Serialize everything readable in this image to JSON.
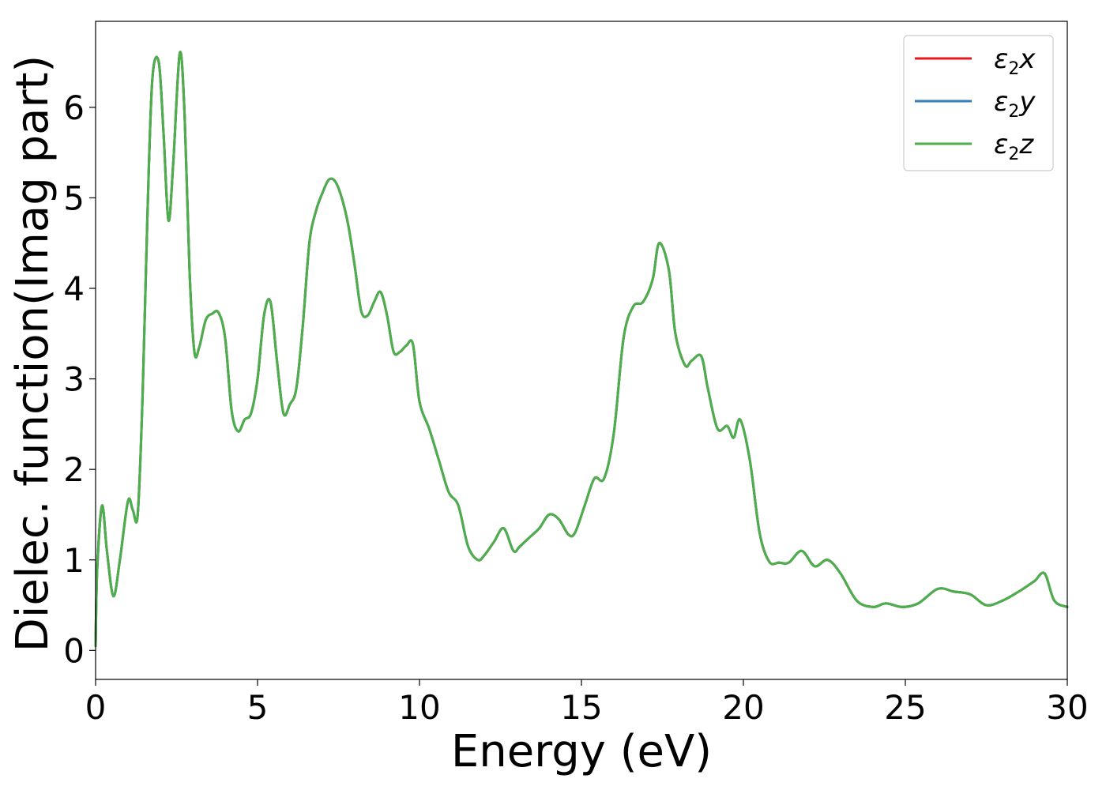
{
  "chart_data": {
    "type": "line",
    "xlabel": "Energy (eV)",
    "ylabel": "Dielec. function(Imag part)",
    "xlim": [
      0,
      30
    ],
    "ylim": [
      -0.32,
      6.95
    ],
    "xticks": [
      0,
      5,
      10,
      15,
      20,
      25,
      30
    ],
    "yticks": [
      0,
      1,
      2,
      3,
      4,
      5,
      6
    ],
    "grid": false,
    "legend_position": "top-right",
    "x": [
      0.0,
      0.05,
      0.2,
      0.35,
      0.55,
      0.75,
      1.0,
      1.15,
      1.3,
      1.45,
      1.6,
      1.75,
      1.95,
      2.1,
      2.25,
      2.4,
      2.6,
      2.75,
      2.9,
      3.05,
      3.2,
      3.4,
      3.6,
      3.8,
      4.0,
      4.2,
      4.4,
      4.6,
      4.8,
      5.0,
      5.2,
      5.4,
      5.6,
      5.8,
      6.0,
      6.2,
      6.4,
      6.6,
      6.8,
      7.0,
      7.2,
      7.4,
      7.6,
      7.8,
      8.0,
      8.2,
      8.4,
      8.6,
      8.8,
      9.0,
      9.2,
      9.4,
      9.6,
      9.8,
      10.0,
      10.3,
      10.6,
      10.9,
      11.2,
      11.5,
      11.8,
      12.0,
      12.3,
      12.6,
      12.9,
      13.1,
      13.4,
      13.7,
      14.0,
      14.3,
      14.6,
      14.8,
      15.1,
      15.4,
      15.7,
      16.0,
      16.3,
      16.6,
      16.9,
      17.2,
      17.4,
      17.7,
      17.9,
      18.2,
      18.4,
      18.7,
      18.9,
      19.2,
      19.5,
      19.7,
      19.9,
      20.2,
      20.5,
      20.8,
      21.1,
      21.4,
      21.8,
      22.2,
      22.6,
      23.0,
      23.5,
      24.0,
      24.4,
      24.9,
      25.4,
      26.0,
      26.5,
      27.0,
      27.5,
      28.0,
      28.5,
      28.8,
      29.0,
      29.3,
      29.6,
      30.0
    ],
    "series": [
      {
        "name": "ε₂x",
        "color": "#e41a1c",
        "y": [
          0.05,
          0.9,
          1.6,
          1.1,
          0.6,
          1.0,
          1.65,
          1.55,
          1.5,
          2.8,
          4.8,
          6.3,
          6.5,
          5.7,
          4.75,
          5.4,
          6.6,
          5.9,
          4.2,
          3.3,
          3.35,
          3.65,
          3.72,
          3.73,
          3.45,
          2.65,
          2.42,
          2.55,
          2.62,
          3.0,
          3.7,
          3.85,
          3.2,
          2.62,
          2.72,
          2.9,
          3.6,
          4.5,
          4.85,
          5.05,
          5.2,
          5.18,
          5.0,
          4.7,
          4.25,
          3.75,
          3.7,
          3.85,
          3.96,
          3.7,
          3.3,
          3.3,
          3.37,
          3.38,
          2.75,
          2.45,
          2.1,
          1.75,
          1.6,
          1.15,
          1.0,
          1.05,
          1.2,
          1.35,
          1.1,
          1.15,
          1.25,
          1.35,
          1.5,
          1.45,
          1.28,
          1.3,
          1.6,
          1.9,
          1.9,
          2.4,
          3.45,
          3.8,
          3.85,
          4.1,
          4.5,
          4.2,
          3.5,
          3.15,
          3.2,
          3.25,
          2.9,
          2.45,
          2.48,
          2.35,
          2.55,
          2.1,
          1.3,
          0.98,
          0.97,
          0.97,
          1.1,
          0.93,
          1.0,
          0.85,
          0.55,
          0.48,
          0.52,
          0.48,
          0.52,
          0.68,
          0.65,
          0.62,
          0.5,
          0.55,
          0.65,
          0.72,
          0.77,
          0.85,
          0.55,
          0.48
        ]
      },
      {
        "name": "ε₂y",
        "color": "#377eb8",
        "y": [
          0.05,
          0.9,
          1.6,
          1.1,
          0.6,
          1.0,
          1.65,
          1.55,
          1.5,
          2.8,
          4.8,
          6.3,
          6.5,
          5.7,
          4.75,
          5.4,
          6.6,
          5.9,
          4.2,
          3.3,
          3.35,
          3.65,
          3.72,
          3.73,
          3.45,
          2.65,
          2.42,
          2.55,
          2.62,
          3.0,
          3.7,
          3.85,
          3.2,
          2.62,
          2.72,
          2.9,
          3.6,
          4.5,
          4.85,
          5.05,
          5.2,
          5.18,
          5.0,
          4.7,
          4.25,
          3.75,
          3.7,
          3.85,
          3.96,
          3.7,
          3.3,
          3.3,
          3.37,
          3.38,
          2.75,
          2.45,
          2.1,
          1.75,
          1.6,
          1.15,
          1.0,
          1.05,
          1.2,
          1.35,
          1.1,
          1.15,
          1.25,
          1.35,
          1.5,
          1.45,
          1.28,
          1.3,
          1.6,
          1.9,
          1.9,
          2.4,
          3.45,
          3.8,
          3.85,
          4.1,
          4.5,
          4.2,
          3.5,
          3.15,
          3.2,
          3.25,
          2.9,
          2.45,
          2.48,
          2.35,
          2.55,
          2.1,
          1.3,
          0.98,
          0.97,
          0.97,
          1.1,
          0.93,
          1.0,
          0.85,
          0.55,
          0.48,
          0.52,
          0.48,
          0.52,
          0.68,
          0.65,
          0.62,
          0.5,
          0.55,
          0.65,
          0.72,
          0.77,
          0.85,
          0.55,
          0.48
        ]
      },
      {
        "name": "ε₂z",
        "color": "#4daf4a",
        "y": [
          0.05,
          0.9,
          1.6,
          1.1,
          0.6,
          1.0,
          1.65,
          1.55,
          1.5,
          2.8,
          4.8,
          6.3,
          6.5,
          5.7,
          4.75,
          5.4,
          6.6,
          5.9,
          4.2,
          3.3,
          3.35,
          3.65,
          3.72,
          3.73,
          3.45,
          2.65,
          2.42,
          2.55,
          2.62,
          3.0,
          3.7,
          3.85,
          3.2,
          2.62,
          2.72,
          2.9,
          3.6,
          4.5,
          4.85,
          5.05,
          5.2,
          5.18,
          5.0,
          4.7,
          4.25,
          3.75,
          3.7,
          3.85,
          3.96,
          3.7,
          3.3,
          3.3,
          3.37,
          3.38,
          2.75,
          2.45,
          2.1,
          1.75,
          1.6,
          1.15,
          1.0,
          1.05,
          1.2,
          1.35,
          1.1,
          1.15,
          1.25,
          1.35,
          1.5,
          1.45,
          1.28,
          1.3,
          1.6,
          1.9,
          1.9,
          2.4,
          3.45,
          3.8,
          3.85,
          4.1,
          4.5,
          4.2,
          3.5,
          3.15,
          3.2,
          3.25,
          2.9,
          2.45,
          2.48,
          2.35,
          2.55,
          2.1,
          1.3,
          0.98,
          0.97,
          0.97,
          1.1,
          0.93,
          1.0,
          0.85,
          0.55,
          0.48,
          0.52,
          0.48,
          0.52,
          0.68,
          0.65,
          0.62,
          0.5,
          0.55,
          0.65,
          0.72,
          0.77,
          0.85,
          0.55,
          0.48
        ]
      }
    ]
  }
}
